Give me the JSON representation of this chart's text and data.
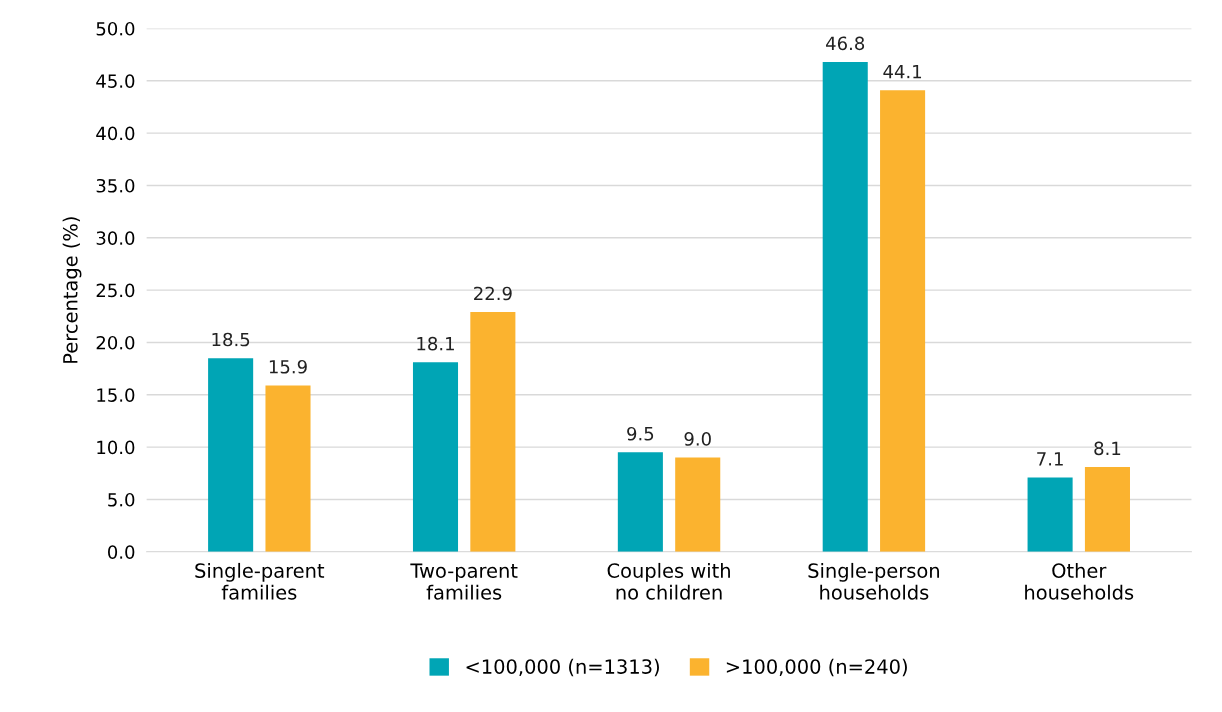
{
  "chart_data": {
    "type": "bar",
    "ylabel": "Percentage (%)",
    "categories": [
      "Single-parent\nfamilies",
      "Two-parent\nfamilies",
      "Couples with\nno children",
      "Single-person\nhouseholds",
      "Other\nhouseholds"
    ],
    "series": [
      {
        "name": "<100,000 (n=1313)",
        "color": "#00a5b5",
        "values": [
          18.5,
          18.1,
          9.5,
          46.8,
          7.1
        ],
        "value_labels": [
          "18.5",
          "18.1",
          "9.5",
          "46.8",
          "7.1"
        ]
      },
      {
        "name": ">100,000 (n=240)",
        "color": "#fbb32f",
        "values": [
          15.9,
          22.9,
          9.0,
          44.1,
          8.1
        ],
        "value_labels": [
          "15.9",
          "22.9",
          "9.0",
          "44.1",
          "8.1"
        ]
      }
    ],
    "ylim": [
      0,
      50
    ],
    "yticks": [
      {
        "value": 0,
        "label": "0.0"
      },
      {
        "value": 5,
        "label": "5.0"
      },
      {
        "value": 10,
        "label": "10.0"
      },
      {
        "value": 15,
        "label": "15.0"
      },
      {
        "value": 20,
        "label": "20.0"
      },
      {
        "value": 25,
        "label": "25.0"
      },
      {
        "value": 30,
        "label": "30.0"
      },
      {
        "value": 35,
        "label": "35.0"
      },
      {
        "value": 40,
        "label": "40.0"
      },
      {
        "value": 45,
        "label": "45.0"
      },
      {
        "value": 50,
        "label": "50.0"
      }
    ],
    "grid": "y",
    "legend": "bottom"
  }
}
